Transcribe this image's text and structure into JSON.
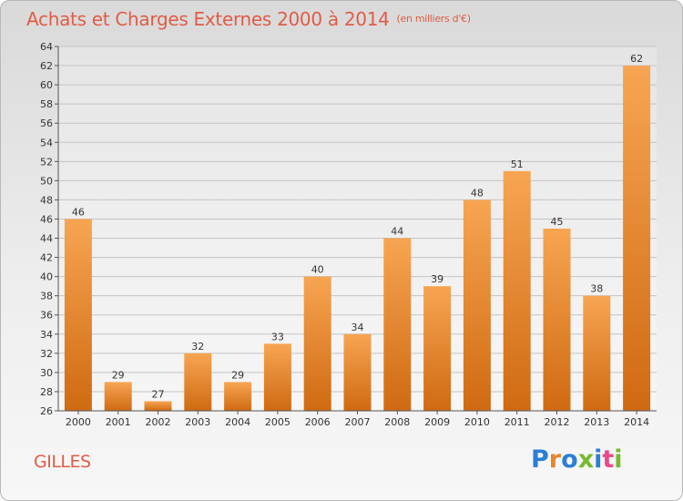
{
  "header": {
    "title": "Achats et Charges Externes 2000 à 2014",
    "subtitle": "(en milliers d'€)"
  },
  "footer": {
    "commune": "GILLES",
    "logo": "Proxiti"
  },
  "colors": {
    "accent": "#e05c46",
    "bar_top": "#f7a552",
    "bar_bottom": "#cf6a12"
  },
  "chart_data": {
    "type": "bar",
    "categories": [
      "2000",
      "2001",
      "2002",
      "2003",
      "2004",
      "2005",
      "2006",
      "2007",
      "2008",
      "2009",
      "2010",
      "2011",
      "2012",
      "2013",
      "2014"
    ],
    "values": [
      46,
      29,
      27,
      32,
      29,
      33,
      40,
      34,
      44,
      39,
      48,
      51,
      45,
      38,
      62
    ],
    "data_labels": [
      "46",
      "29",
      "27",
      "32",
      "29",
      "33",
      "40",
      "34",
      "44",
      "39",
      "48",
      "51",
      "45",
      "38",
      "62"
    ],
    "ylim": [
      26,
      64
    ],
    "yticks": [
      26,
      28,
      30,
      32,
      34,
      36,
      38,
      40,
      42,
      44,
      46,
      48,
      50,
      52,
      54,
      56,
      58,
      60,
      62,
      64
    ],
    "grid": true
  }
}
